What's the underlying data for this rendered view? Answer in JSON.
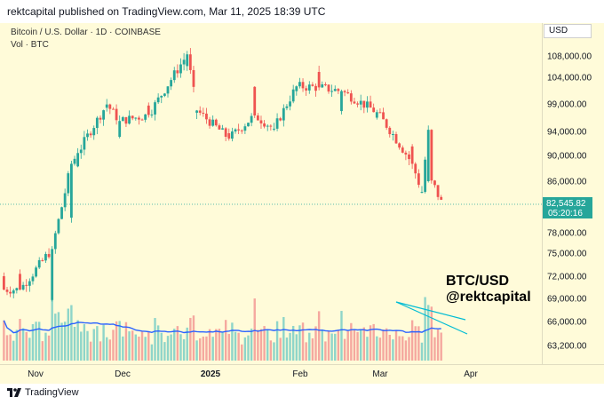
{
  "header": {
    "publisher": "rektcapital published on TradingView.com, Mar 11, 2025 18:39 UTC"
  },
  "legend": {
    "symbol_line": "Bitcoin / U.S. Dollar · 1D · COINBASE",
    "volume_line": "Vol · BTC"
  },
  "currency": "USD",
  "watermark": {
    "line1": "BTC/USD",
    "line2": "@rektcapital"
  },
  "footer": {
    "brand": "TradingView"
  },
  "colors": {
    "up": "#26a69a",
    "down": "#ef5350",
    "up_vol": "#8ed5c9",
    "down_vol": "#f5a89f",
    "vol_ma": "#2962ff",
    "trendline": "#00bcd4",
    "last_price_bg": "#26a69a"
  },
  "chart_data": {
    "type": "candlestick",
    "price_axis": {
      "ticks": [
        108000,
        104000,
        99000,
        94000,
        90000,
        86000,
        82545.82,
        78000,
        75000,
        72000,
        69000,
        66000,
        63200
      ],
      "tick_labels": [
        "108,000.00",
        "104,000.00",
        "99,000.00",
        "94,000.00",
        "90,000.00",
        "86,000.00",
        "82,545.82",
        "78,000.00",
        "75,000.00",
        "72,000.00",
        "69,000.00",
        "66,000.00",
        "63,200.00"
      ]
    },
    "last_price": {
      "value": "82,545.82",
      "countdown": "05:20:16"
    },
    "time_axis": {
      "labels": [
        "Nov",
        "Dec",
        "2025",
        "Feb",
        "Mar",
        "Apr"
      ],
      "bold": "2025"
    },
    "candles": [
      {
        "date": "Oct 31",
        "open": 72300,
        "close": 70200
      },
      {
        "date": "Nov 5",
        "open": 68800,
        "close": 75600
      },
      {
        "date": "Nov 11",
        "open": 80400,
        "close": 88700
      },
      {
        "date": "Nov 13",
        "open": 88300,
        "close": 90400
      },
      {
        "date": "Nov 22",
        "open": 98300,
        "close": 98900
      },
      {
        "date": "Nov 26",
        "open": 93100,
        "close": 95900
      },
      {
        "date": "Dec 5",
        "open": 98700,
        "close": 97000
      },
      {
        "date": "Dec 17",
        "open": 106100,
        "close": 108300
      },
      {
        "date": "Dec 20",
        "open": 97400,
        "close": 97800
      },
      {
        "date": "Dec 30",
        "open": 93700,
        "close": 92800
      },
      {
        "date": "Jan 7",
        "open": 102200,
        "close": 96900
      },
      {
        "date": "Jan 13",
        "open": 94500,
        "close": 94500
      },
      {
        "date": "Jan 20",
        "open": 101400,
        "close": 102300
      },
      {
        "date": "Jan 27",
        "open": 105000,
        "close": 102100
      },
      {
        "date": "Feb 3",
        "open": 97700,
        "close": 101400
      },
      {
        "date": "Feb 14",
        "open": 96500,
        "close": 97500
      },
      {
        "date": "Feb 25",
        "open": 91500,
        "close": 88700
      },
      {
        "date": "Feb 28",
        "open": 84300,
        "close": 84400
      },
      {
        "date": "Mar 2",
        "open": 86000,
        "close": 94300
      },
      {
        "date": "Mar 3",
        "open": 94300,
        "close": 86100
      },
      {
        "date": "Mar 10",
        "open": 80700,
        "close": 78600
      },
      {
        "date": "Mar 11",
        "open": 78600,
        "close": 82545.82
      }
    ]
  }
}
